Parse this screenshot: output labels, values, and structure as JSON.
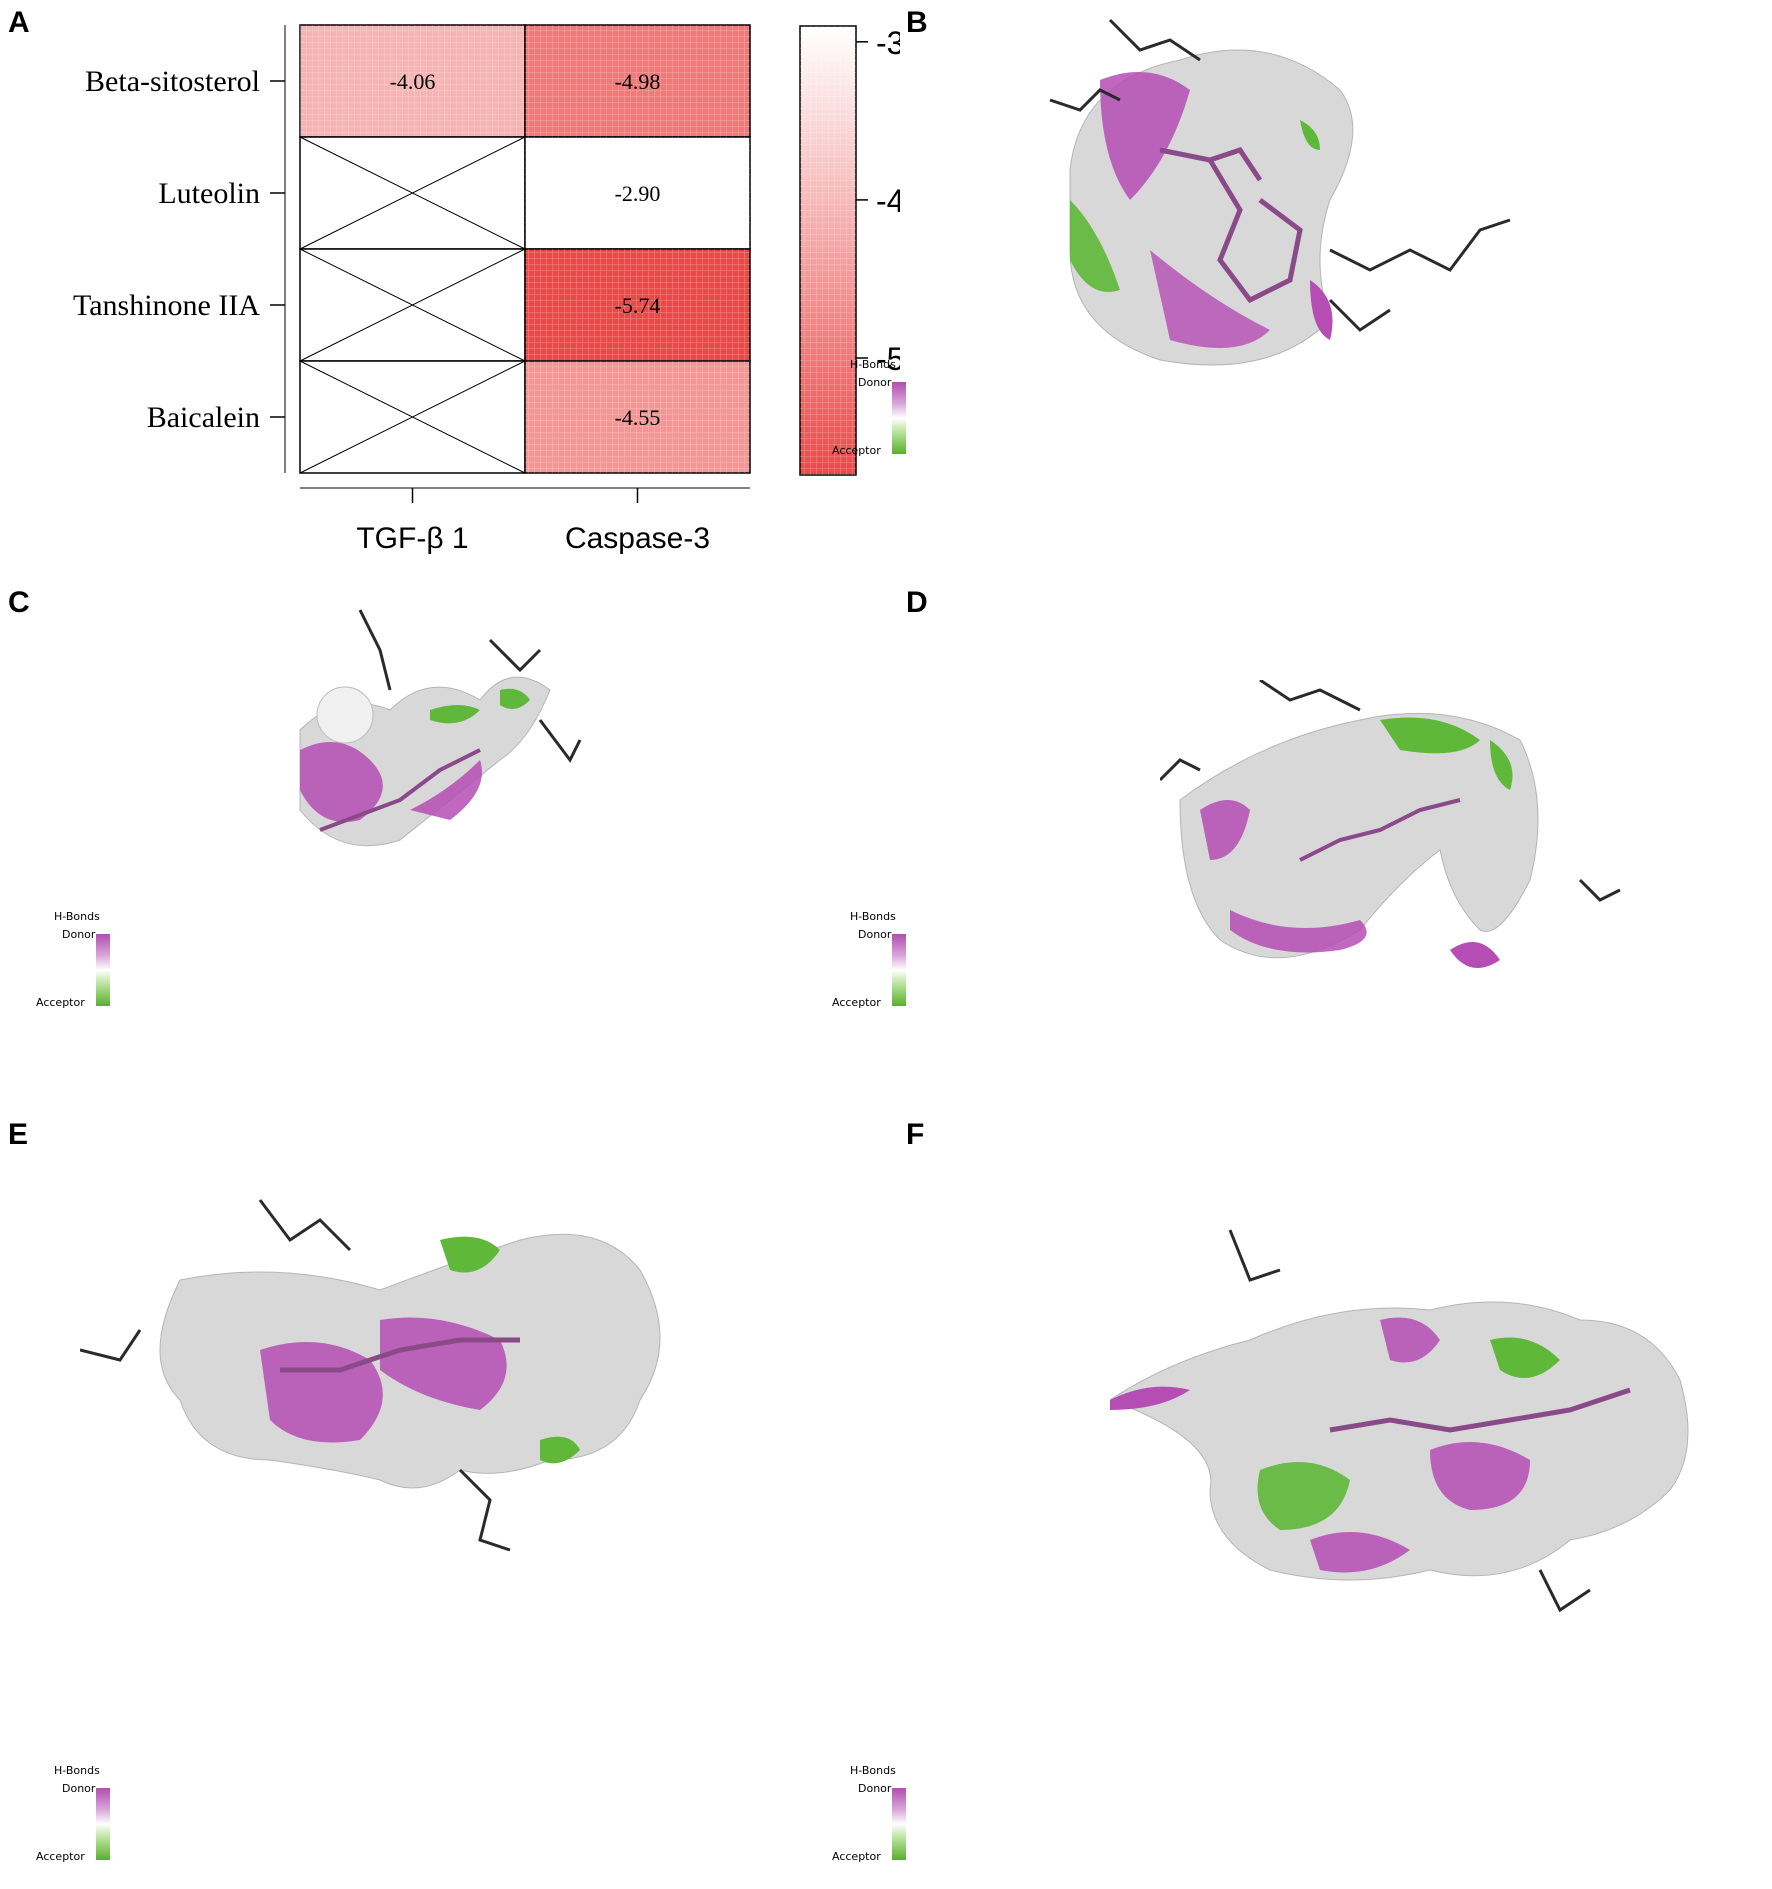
{
  "panels": {
    "A": "A",
    "B": "B",
    "C": "C",
    "D": "D",
    "E": "E",
    "F": "F"
  },
  "hbond_legend": {
    "title": "H-Bonds",
    "donor": "Donor",
    "acceptor": "Acceptor",
    "donor_color": "#a0409f",
    "acceptor_color": "#4fae2a"
  },
  "chart_data": {
    "type": "heatmap",
    "rows": [
      "Beta-sitosterol",
      "Luteolin",
      "Tanshinone IIA",
      "Baicalein"
    ],
    "columns": [
      "TGF-β 1",
      "Caspase-3"
    ],
    "values": [
      [
        -4.06,
        -4.98
      ],
      [
        null,
        -2.9
      ],
      [
        null,
        -5.74
      ],
      [
        null,
        -4.55
      ]
    ],
    "value_labels": [
      [
        "-4.06",
        "-4.98"
      ],
      [
        "",
        "-2.90"
      ],
      [
        "",
        "-5.74"
      ],
      [
        "",
        "-4.55"
      ]
    ],
    "missing_marker": "crossed cell",
    "colorbar": {
      "ticks": [
        -3,
        -4,
        -5
      ],
      "tick_labels": [
        "-3",
        "-4",
        "-5"
      ],
      "range": [
        -5.74,
        -2.9
      ],
      "low_color": "#e84a4a",
      "high_color": "#ffffff"
    }
  }
}
